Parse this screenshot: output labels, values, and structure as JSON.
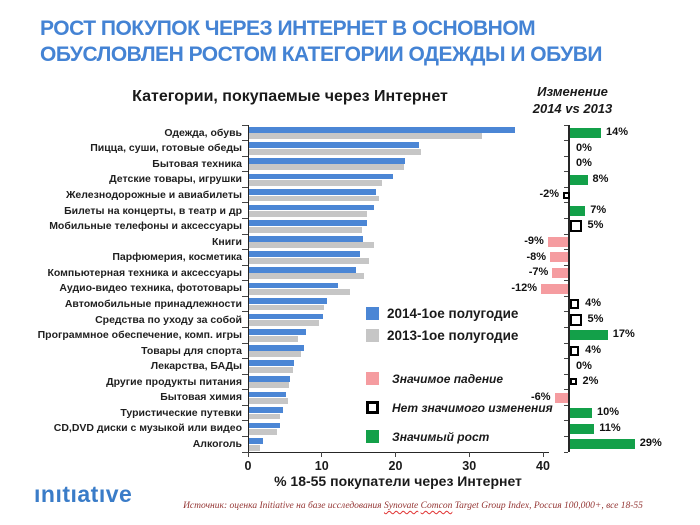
{
  "slide": {
    "title": "РОСТ ПОКУПОК ЧЕРЕЗ ИНТЕРНЕТ В ОСНОВНОМ\nОБУСЛОВЛЕН РОСТОМ КАТЕГОРИИ ОДЕЖДЫ И ОБУВИ"
  },
  "chart_data": {
    "type": "bar",
    "orientation": "horizontal",
    "title": "Категории, покупаемые через Интернет",
    "xlabel": "% 18-55 покупатели через Интернет",
    "xlim": [
      0,
      40
    ],
    "x_ticks": [
      0,
      10,
      20,
      30,
      40
    ],
    "categories": [
      "Одежда, обувь",
      "Пицца, суши, готовые обеды",
      "Бытовая техника",
      "Детские товары, игрушки",
      "Железнодорожные и авиабилеты",
      "Билеты на концерты, в театр и др",
      "Мобильные телефоны и аксессуары",
      "Книги",
      "Парфюмерия, косметика",
      "Компьютерная техника и аксессуары",
      "Аудио-видео техника, фототовары",
      "Автомобильные принадлежности",
      "Средства по уходу за собой",
      "Программное обеспечение, комп. игры",
      "Товары для спорта",
      "Лекарства, БАДы",
      "Другие продукты питания",
      "Бытовая химия",
      "Туристические путевки",
      "CD,DVD диски с музыкой или видео",
      "Алкоголь"
    ],
    "series": [
      {
        "name": "2014-1ое полугодие",
        "values": [
          36,
          23,
          21.2,
          19.5,
          17.2,
          17,
          16,
          15.5,
          15,
          14.5,
          12,
          10.6,
          10,
          7.7,
          7.4,
          6.1,
          5.5,
          5,
          4.6,
          4.2,
          1.9
        ]
      },
      {
        "name": "2013-1ое полугодие",
        "values": [
          31.6,
          23.3,
          21,
          18,
          17.6,
          16,
          15.3,
          17,
          16.3,
          15.6,
          13.7,
          10.2,
          9.5,
          6.6,
          7.1,
          6,
          5.4,
          5.3,
          4.2,
          3.8,
          1.5
        ]
      }
    ],
    "change": {
      "header": "Изменение\n2014 vs 2013",
      "labels": [
        "14%",
        "0%",
        "0%",
        "8%",
        "-2%",
        "7%",
        "5%",
        "-9%",
        "-8%",
        "-7%",
        "-12%",
        "4%",
        "5%",
        "17%",
        "4%",
        "0%",
        "2%",
        "-6%",
        "10%",
        "11%",
        "29%"
      ],
      "values": [
        14,
        0,
        0,
        8,
        -2,
        7,
        5,
        -9,
        -8,
        -7,
        -12,
        4,
        5,
        17,
        4,
        0,
        2,
        -6,
        10,
        11,
        29
      ],
      "types": [
        "growth",
        "zero",
        "zero",
        "growth",
        "nochange",
        "growth",
        "nochange",
        "fall",
        "fall",
        "fall",
        "fall",
        "nochange",
        "nochange",
        "growth",
        "nochange",
        "zero",
        "nochange",
        "fall",
        "growth",
        "growth",
        "growth"
      ]
    }
  },
  "legend": {
    "series": [
      {
        "label": "2014-1ое полугодие",
        "color": "#4B86D5"
      },
      {
        "label": "2013-1ое полугодие",
        "color": "#C6C6C6"
      }
    ],
    "significance": [
      {
        "label": "Значимое падение",
        "style": "fill",
        "color": "#F59CA0"
      },
      {
        "label": "Нет значимого изменения",
        "style": "box",
        "color": "#000000"
      },
      {
        "label": "Значимый рост",
        "style": "fill",
        "color": "#13A049"
      }
    ]
  },
  "footer": {
    "logo": "ınıtıatıve",
    "source_prefix": "Источник:  оценка Initiative на базе исследования ",
    "source_synovate": "Synovate",
    "source_sep": " ",
    "source_comcon": "Comcon",
    "source_suffix": " Target Group Index, Россия 100,000+, все 18-55"
  },
  "colors": {
    "title_blue": "#4483D4",
    "bar_2014": "#4B86D5",
    "bar_2013": "#C6C6C6",
    "growth_green": "#13A049",
    "fall_pink": "#F59CA0",
    "axis": "#262626",
    "source_maroon": "#943634",
    "logo_blue": "#3A7CC8"
  }
}
